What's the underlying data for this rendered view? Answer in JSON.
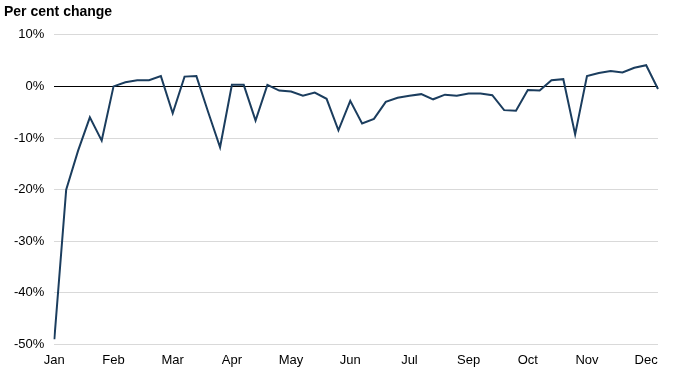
{
  "chart_data": {
    "type": "line",
    "title": "Per cent change",
    "categories": [
      "Jan",
      null,
      null,
      null,
      null,
      "Feb",
      null,
      null,
      null,
      null,
      "Mar",
      null,
      null,
      null,
      null,
      "Apr",
      null,
      null,
      null,
      null,
      "May",
      null,
      null,
      null,
      null,
      "Jun",
      null,
      null,
      null,
      null,
      "Jul",
      null,
      null,
      null,
      null,
      "Sep",
      null,
      null,
      null,
      null,
      "Oct",
      null,
      null,
      null,
      null,
      "Nov",
      null,
      null,
      null,
      null,
      "Dec",
      null
    ],
    "values": [
      -49,
      -20,
      -12.5,
      -6,
      -10.5,
      0,
      0.8,
      1.2,
      1.2,
      2,
      -5.2,
      1.9,
      2,
      -5,
      -11.8,
      0.3,
      0.3,
      -6.6,
      0.3,
      -0.8,
      -1,
      -1.8,
      -1.2,
      -2.4,
      -8.5,
      -2.8,
      -7.2,
      -6.3,
      -3,
      -2.2,
      -1.8,
      -1.5,
      -2.5,
      -1.6,
      -1.8,
      -1.4,
      -1.4,
      -1.7,
      -4.6,
      -4.7,
      -0.7,
      -0.8,
      1.2,
      1.4,
      -9.3,
      2,
      2.6,
      3,
      2.7,
      3.6,
      4.1,
      -0.5
    ],
    "color": "#1b3d5e",
    "ylim": [
      -50,
      10
    ],
    "yticks": [
      {
        "value": -50,
        "label": "-50%"
      },
      {
        "value": -40,
        "label": "-40%"
      },
      {
        "value": -30,
        "label": "-30%"
      },
      {
        "value": -20,
        "label": "-20%"
      },
      {
        "value": -10,
        "label": "-10%"
      },
      {
        "value": 0,
        "label": "0%"
      },
      {
        "value": 10,
        "label": "10%"
      }
    ],
    "grid": true
  }
}
